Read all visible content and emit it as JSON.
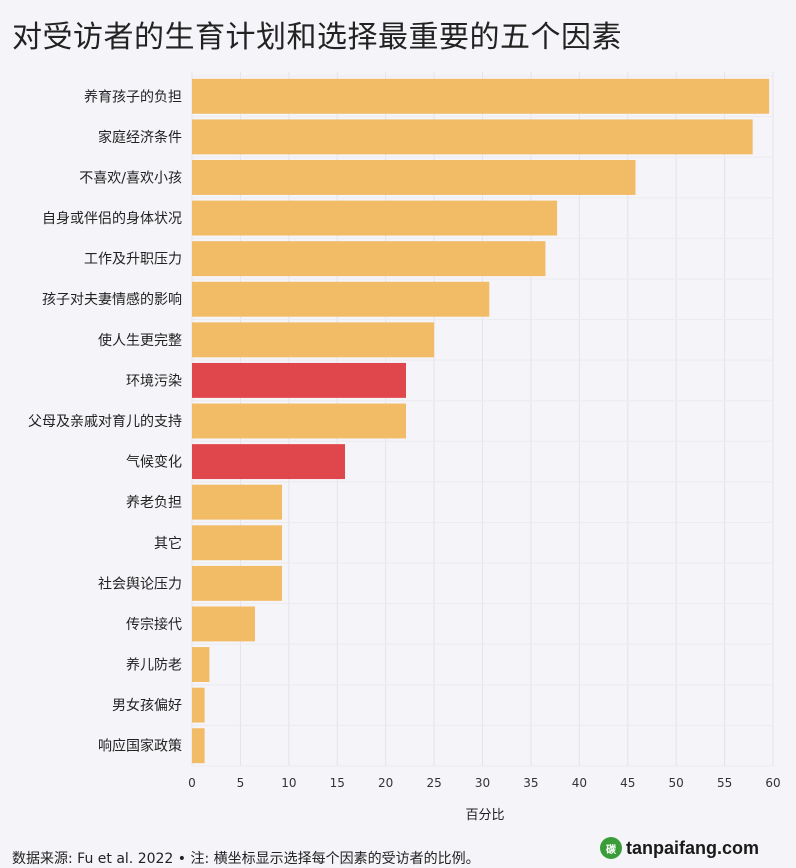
{
  "chart_data": {
    "type": "bar",
    "orientation": "horizontal",
    "title": "对受访者的生育计划和选择最重要的五个因素",
    "xlabel": "百分比",
    "ylabel": "",
    "xlim": [
      0,
      60
    ],
    "xticks": [
      0,
      5,
      10,
      15,
      20,
      25,
      30,
      35,
      40,
      45,
      50,
      55,
      60
    ],
    "grid": "vertical",
    "categories": [
      "养育孩子的负担",
      "家庭经济条件",
      "不喜欢/喜欢小孩",
      "自身或伴侣的身体状况",
      "工作及升职压力",
      "孩子对夫妻情感的影响",
      "使人生更完整",
      "环境污染",
      "父母及亲戚对育儿的支持",
      "气候变化",
      "养老负担",
      "其它",
      "社会舆论压力",
      "传宗接代",
      "养儿防老",
      "男女孩偏好",
      "响应国家政策"
    ],
    "values": [
      59.6,
      57.9,
      45.8,
      37.7,
      36.5,
      30.7,
      25.0,
      22.1,
      22.1,
      15.8,
      9.3,
      9.3,
      9.3,
      6.5,
      1.8,
      1.3,
      1.3
    ],
    "colors": [
      "#f2bb66",
      "#f2bb66",
      "#f2bb66",
      "#f2bb66",
      "#f2bb66",
      "#f2bb66",
      "#f2bb66",
      "#e0474c",
      "#f2bb66",
      "#e0474c",
      "#f2bb66",
      "#f2bb66",
      "#f2bb66",
      "#f2bb66",
      "#f2bb66",
      "#f2bb66",
      "#f2bb66"
    ],
    "highlight_color": "#e0474c",
    "base_color": "#f2bb66"
  },
  "source_note": "数据来源: Fu et al. 2022 • 注: 横坐标显示选择每个因素的受访者的比例。",
  "watermark": {
    "text": "tanpaifang.com",
    "logo_text": "碳"
  }
}
